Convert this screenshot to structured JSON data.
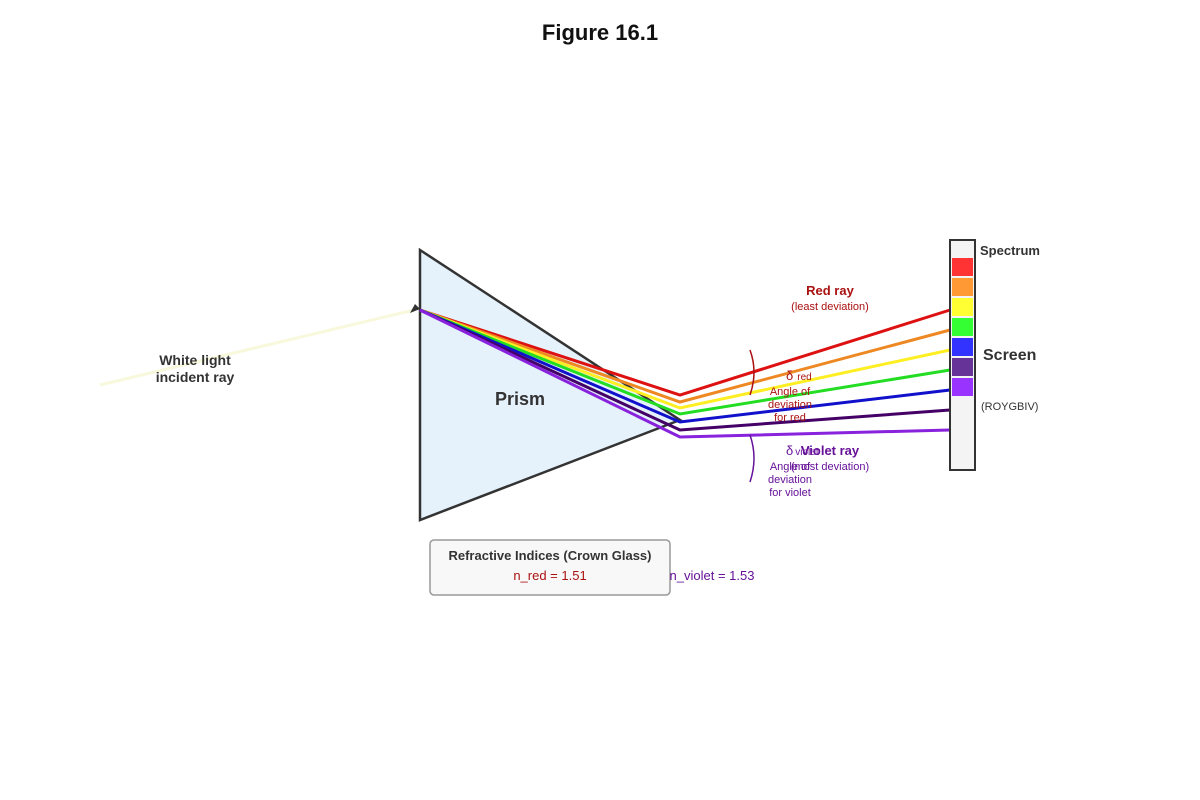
{
  "title": "Figure 16.1",
  "incident": {
    "lines": [
      "White light",
      "incident ray"
    ]
  },
  "prism": {
    "label": "Prism"
  },
  "red_ray": {
    "label": "Red ray",
    "note": "(least deviation)",
    "delta": "δ",
    "delta_sub": "red",
    "angle_lines": [
      "Angle of",
      "deviation",
      "for red"
    ]
  },
  "violet_ray": {
    "label": "Violet ray",
    "note": "(most deviation)",
    "delta": "δ",
    "delta_sub": "violet",
    "angle_lines": [
      "Angle of",
      "deviation",
      "for violet"
    ]
  },
  "screen": {
    "title": "Spectrum",
    "label": "Screen",
    "note": "(ROYGBIV)"
  },
  "indices_box": {
    "title": "Refractive Indices (Crown Glass)",
    "n_red": "n_red = 1.51",
    "n_violet": "n_violet = 1.53"
  }
}
